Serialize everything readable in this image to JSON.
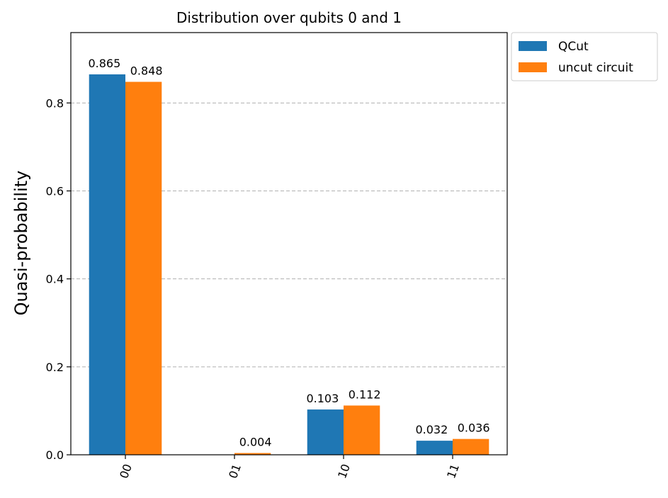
{
  "chart_data": {
    "type": "bar",
    "title": "Distribution over qubits 0 and 1",
    "ylabel": "Quasi-probability",
    "xlabel": "",
    "categories": [
      "00",
      "01",
      "10",
      "11"
    ],
    "series": [
      {
        "name": "QCut",
        "color": "#1f77b4",
        "values": [
          0.865,
          0.0,
          0.103,
          0.032
        ],
        "labels": [
          "0.865",
          "",
          "0.103",
          "0.032"
        ]
      },
      {
        "name": "uncut circuit",
        "color": "#ff7f0e",
        "values": [
          0.848,
          0.004,
          0.112,
          0.036
        ],
        "labels": [
          "0.848",
          "0.004",
          "0.112",
          "0.036"
        ]
      }
    ],
    "ylim": [
      0,
      0.96
    ],
    "yticks": [
      0.0,
      0.2,
      0.4,
      0.6,
      0.8
    ],
    "ytick_labels": [
      "0.0",
      "0.2",
      "0.4",
      "0.6",
      "0.8"
    ],
    "grid": "horizontal dashed",
    "legend_placement": "outside top-right"
  }
}
